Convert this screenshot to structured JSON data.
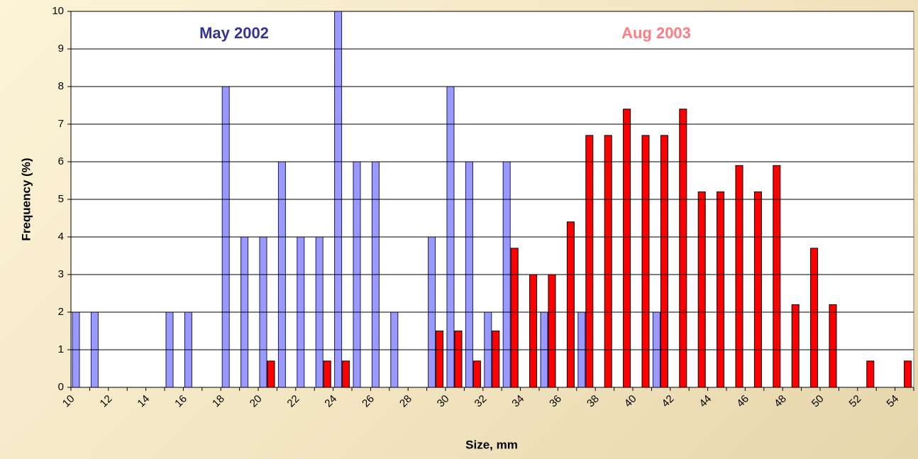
{
  "chart_data": {
    "type": "bar",
    "xlabel": "Size, mm",
    "ylabel": "Frequency (%)",
    "annotations": [
      "May 2002",
      "Aug 2003"
    ],
    "categories": [
      10,
      null,
      12,
      null,
      14,
      null,
      16,
      null,
      18,
      null,
      20,
      null,
      22,
      null,
      24,
      null,
      26,
      null,
      28,
      null,
      30,
      null,
      32,
      null,
      34,
      null,
      36,
      null,
      38,
      null,
      40,
      null,
      42,
      null,
      44,
      null,
      46,
      null,
      48,
      null,
      50,
      null,
      52,
      null,
      54
    ],
    "series": [
      {
        "name": "May 2002",
        "color": "#9999ff",
        "values": [
          2,
          2,
          0,
          0,
          0,
          2,
          2,
          0,
          8,
          4,
          4,
          6,
          4,
          4,
          10,
          6,
          6,
          2,
          0,
          4,
          8,
          6,
          2,
          6,
          0,
          2,
          0,
          2,
          0,
          0,
          0,
          2,
          0,
          0,
          0,
          0,
          0,
          0,
          0,
          0,
          0,
          0,
          0,
          0,
          0
        ]
      },
      {
        "name": "Aug 2003",
        "color": "#ff0000",
        "values": [
          0,
          0,
          0,
          0,
          0,
          0,
          0,
          0,
          0,
          0,
          0.7,
          0,
          0,
          0.7,
          0.7,
          0,
          0,
          0,
          0,
          1.5,
          1.5,
          0.7,
          1.5,
          3.7,
          3.0,
          3.0,
          4.4,
          6.7,
          6.7,
          7.4,
          6.7,
          6.7,
          7.4,
          5.2,
          5.2,
          5.9,
          5.2,
          5.9,
          2.2,
          3.7,
          2.2,
          0,
          0.7,
          0,
          0.7
        ]
      }
    ],
    "ylim": [
      0,
      10
    ],
    "yticks": [
      0,
      1,
      2,
      3,
      4,
      5,
      6,
      7,
      8,
      9,
      10
    ],
    "grid": true
  }
}
